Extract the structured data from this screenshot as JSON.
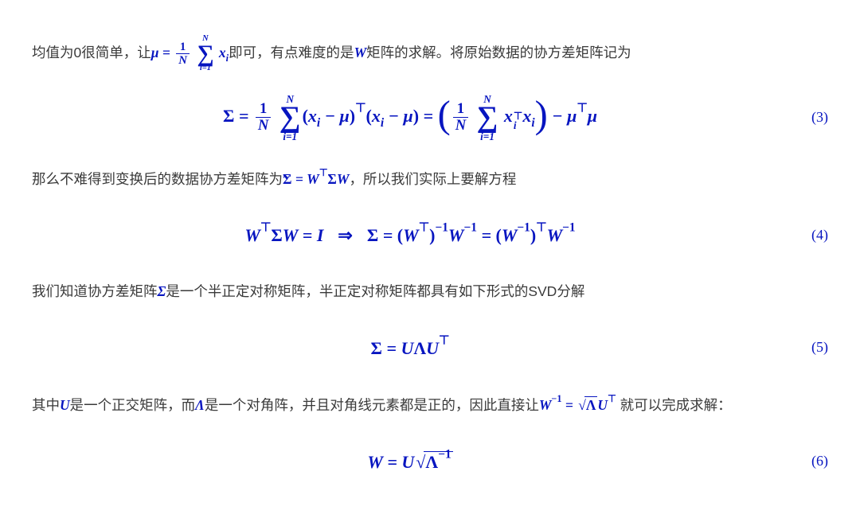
{
  "colors": {
    "text": "#3a3a3a",
    "math": "#0715c0",
    "background": "#ffffff"
  },
  "typography": {
    "body_font": "Microsoft YaHei / PingFang SC",
    "math_font": "Times New Roman (italic bold)",
    "body_size_pt": 13,
    "display_math_size_pt": 16
  },
  "paragraphs": {
    "p1_a": "均值为0很简单，让",
    "p1_mu_eq": "μ = (1/N) Σ_{i=1}^{N} x_i",
    "p1_b": "即可，有点难度的是",
    "p1_W": "W",
    "p1_c": "矩阵的求解。将原始数据的协方差矩阵记为",
    "p2_a": "那么不难得到变换后的数据协方差矩阵为",
    "p2_sigma_tilde": "Σ̃ = WᵀΣW",
    "p2_b": "，所以我们实际上要解方程",
    "p3_a": "我们知道协方差矩阵",
    "p3_sigma": "Σ",
    "p3_b": "是一个半正定对称矩阵，半正定对称矩阵都具有如下形式的SVD分解",
    "p4_a": "其中",
    "p4_U": "U",
    "p4_b": "是一个正交矩阵，而",
    "p4_L": "Λ",
    "p4_c": "是一个对角阵，并且对角线元素都是正的，因此直接让",
    "p4_Winv": "W⁻¹ = √Λ Uᵀ",
    "p4_d": "就可以完成求解：",
    "omitted_note": ""
  },
  "equations": {
    "eq3": {
      "number": "(3)",
      "latex": "Σ = (1/N) Σ_{i=1}^{N} (x_i − μ)ᵀ(x_i − μ) = ( (1/N) Σ_{i=1}^{N} x_iᵀ x_i ) − μᵀμ"
    },
    "eq4": {
      "number": "(4)",
      "latex": "WᵀΣW = I   ⇒   Σ = (Wᵀ)⁻¹ W⁻¹ = (W⁻¹)ᵀ W⁻¹"
    },
    "eq5": {
      "number": "(5)",
      "latex": "Σ = U Λ Uᵀ"
    },
    "eq6": {
      "number": "(6)",
      "latex": "W = U √(Λ⁻¹)"
    }
  }
}
